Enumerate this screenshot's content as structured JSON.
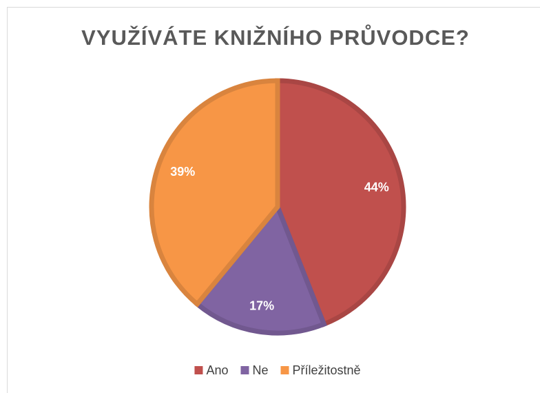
{
  "chart_data": {
    "type": "pie",
    "title": "VYUŽÍVÁTE KNIŽNÍHO PRŮVODCE?",
    "categories": [
      "Ano",
      "Ne",
      "Příležitostně"
    ],
    "values": [
      44,
      17,
      39
    ],
    "value_labels": [
      "44%",
      "17%",
      "39%"
    ],
    "colors": [
      "#c0504d",
      "#8064a2",
      "#f79646"
    ],
    "legend": "bottom"
  }
}
